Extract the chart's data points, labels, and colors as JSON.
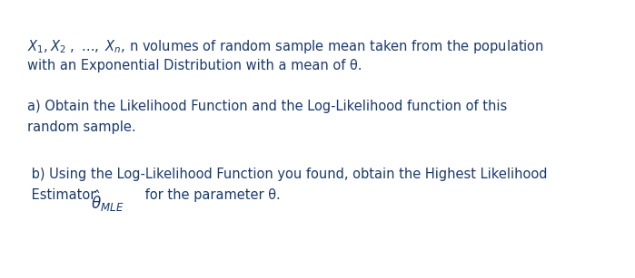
{
  "background_color": "#ffffff",
  "text_color": "#1a3a6b",
  "figsize": [
    6.99,
    3.07
  ],
  "dpi": 100,
  "font_size": 10.5,
  "line1_mathtext": "$X_1, X_2\\ ,\\ \\ldots,\\ X_n$, n volumes of random sample mean taken from the population",
  "line2": "with an Exponential Distribution with a mean of θ.",
  "line3": "a) Obtain the Likelihood Function and the Log-Likelihood function of this",
  "line4": "random sample.",
  "line5": " b) Using the Log-Likelihood Function you found, obtain the Highest Likelihood",
  "line6a": " Estimator ",
  "line6b": " for the parameter θ.",
  "theta_mle": "$\\hat{\\theta}_{MLE}$"
}
